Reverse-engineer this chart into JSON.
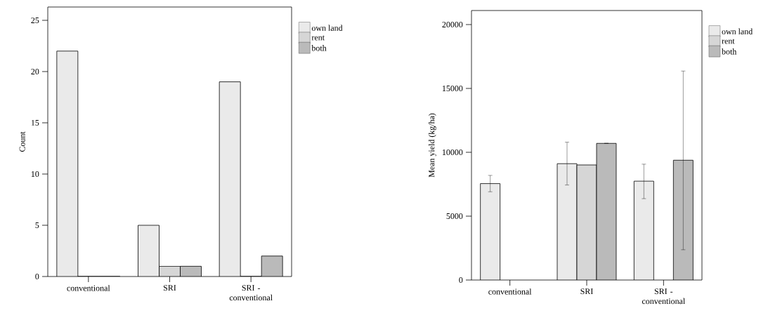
{
  "chart_data": [
    {
      "type": "bar",
      "ylabel": "Count",
      "categories": [
        "conventional",
        "SRI",
        "SRI - conventional"
      ],
      "series": [
        {
          "name": "own land",
          "color": "#eaeaea",
          "values": [
            22,
            5,
            19
          ]
        },
        {
          "name": "rent",
          "color": "#d6d6d6",
          "values": [
            0,
            1,
            0
          ]
        },
        {
          "name": "both",
          "color": "#bababa",
          "values": [
            0,
            1,
            2
          ]
        }
      ],
      "ylim": [
        0,
        26.3
      ],
      "yticks": [
        0,
        5,
        10,
        15,
        20,
        25
      ],
      "legend": "top right",
      "grid": false
    },
    {
      "type": "bar",
      "ylabel": "Mean yield (kg/ha)",
      "categories": [
        "conventional",
        "SRI",
        "SRI - conventional"
      ],
      "series": [
        {
          "name": "own land",
          "color": "#eaeaea",
          "values": [
            7550,
            9110,
            7740
          ],
          "errors": [
            [
              6910,
              8190
            ],
            [
              7440,
              10790
            ],
            [
              6370,
              9070
            ]
          ]
        },
        {
          "name": "rent",
          "color": "#d6d6d6",
          "values": [
            null,
            9010,
            null
          ]
        },
        {
          "name": "both",
          "color": "#bababa",
          "values": [
            null,
            10700,
            9380
          ],
          "errors": [
            null,
            null,
            [
              2370,
              16360
            ]
          ]
        }
      ],
      "ylim": [
        0,
        21100
      ],
      "yticks": [
        0,
        5000,
        10000,
        15000,
        20000
      ],
      "legend": "top right",
      "grid": false
    }
  ]
}
